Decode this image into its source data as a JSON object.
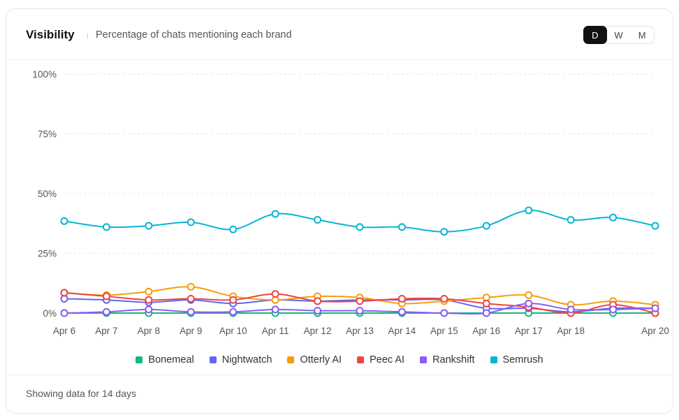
{
  "header": {
    "title": "Visibility",
    "subtitle": "Percentage of chats mentioning each brand",
    "range_options": [
      {
        "label": "D",
        "active": true
      },
      {
        "label": "W",
        "active": false
      },
      {
        "label": "M",
        "active": false
      }
    ]
  },
  "footer": {
    "text": "Showing data for 14 days"
  },
  "chart_data": {
    "type": "line",
    "x_tick_labels": [
      "Apr 6",
      "Apr 7",
      "Apr 8",
      "Apr 9",
      "Apr 10",
      "Apr 11",
      "Apr 12",
      "Apr 13",
      "Apr 14",
      "Apr 15",
      "Apr 16",
      "Apr 17",
      "Apr 18",
      "Apr 20"
    ],
    "x_tick_positions": [
      0,
      1,
      2,
      3,
      4,
      5,
      6,
      7,
      8,
      9,
      10,
      11,
      12,
      14
    ],
    "y_tick_labels": [
      "0%",
      "25%",
      "50%",
      "75%",
      "100%"
    ],
    "ylim": [
      0,
      100
    ],
    "grid": true,
    "legend_position": "bottom-center",
    "series": [
      {
        "name": "Bonemeal",
        "color": "#10b981",
        "values": [
          0,
          0,
          0,
          0,
          0,
          0,
          0,
          0,
          0,
          0,
          0,
          0,
          0,
          0,
          0
        ]
      },
      {
        "name": "Nightwatch",
        "color": "#6366f1",
        "values": [
          6,
          5.5,
          4.5,
          5.5,
          4,
          5.5,
          5,
          5.5,
          5.5,
          5.5,
          2,
          2,
          0.5,
          2,
          2
        ]
      },
      {
        "name": "Otterly AI",
        "color": "#f59e0b",
        "values": [
          8.5,
          7.5,
          9,
          11,
          7,
          5.5,
          7,
          6.5,
          4,
          5,
          6.5,
          7.5,
          3.5,
          5,
          3.5
        ]
      },
      {
        "name": "Peec AI",
        "color": "#ef4444",
        "values": [
          8.5,
          7,
          5.5,
          6,
          5.5,
          8,
          5,
          5,
          6,
          6,
          4,
          2.5,
          0,
          3.5,
          0
        ]
      },
      {
        "name": "Rankshift",
        "color": "#8b5cf6",
        "values": [
          0,
          0.5,
          1.5,
          0.5,
          0.5,
          1.5,
          1,
          1,
          0.5,
          0,
          0,
          4,
          1.5,
          1.5,
          2
        ]
      },
      {
        "name": "Semrush",
        "color": "#06b6d4",
        "values": [
          38.5,
          36,
          36.5,
          38,
          35,
          41.5,
          39,
          36,
          36,
          34,
          36.5,
          43,
          39,
          40,
          36.5
        ]
      }
    ]
  }
}
